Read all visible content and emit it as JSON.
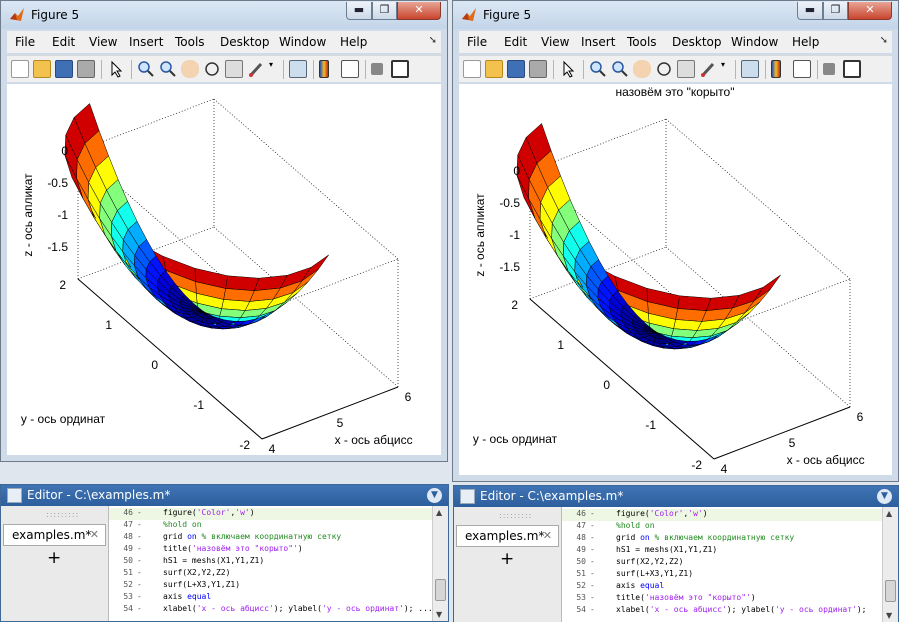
{
  "figures": [
    {
      "title": "Figure 5",
      "menu": [
        "File",
        "Edit",
        "View",
        "Insert",
        "Tools",
        "Desktop",
        "Window",
        "Help"
      ],
      "plot": {
        "title": "",
        "xlabel": "x - ось абцисс",
        "ylabel": "y - ось ординат",
        "zlabel": "z - ось апликат",
        "x_ticks": [
          "4",
          "5",
          "6"
        ],
        "y_ticks": [
          "-2",
          "-1",
          "0",
          "1",
          "2"
        ],
        "z_ticks": [
          "0",
          "-0.5",
          "-1",
          "-1.5"
        ]
      }
    },
    {
      "title": "Figure 5",
      "menu": [
        "File",
        "Edit",
        "View",
        "Insert",
        "Tools",
        "Desktop",
        "Window",
        "Help"
      ],
      "plot": {
        "title": "назовём это \"корыто\"",
        "xlabel": "x - ось абцисс",
        "ylabel": "y - ось ординат",
        "zlabel": "z - ось апликат",
        "x_ticks": [
          "4",
          "5",
          "6"
        ],
        "y_ticks": [
          "-2",
          "-1",
          "0",
          "1",
          "2"
        ],
        "z_ticks": [
          "0",
          "-0.5",
          "-1",
          "-1.5"
        ]
      }
    }
  ],
  "window_buttons": {
    "min": "▬",
    "max": "❐",
    "close": "✕"
  },
  "editors": [
    {
      "title": "Editor - C:\\examples.m*",
      "tab": "examples.m*",
      "tab_close": "✕",
      "new_tab": "+",
      "lines": [
        {
          "n": "46",
          "parts": [
            [
              "plain",
              "figure("
            ],
            [
              "str",
              "'Color'"
            ],
            [
              "plain",
              ","
            ],
            [
              "str",
              "'w'"
            ],
            [
              "plain",
              ")"
            ]
          ]
        },
        {
          "n": "47",
          "parts": [
            [
              "cmt",
              "%hold on"
            ]
          ]
        },
        {
          "n": "48",
          "parts": [
            [
              "plain",
              "grid "
            ],
            [
              "kw",
              "on"
            ],
            [
              "cmt",
              " % включаем координатную сетку"
            ]
          ]
        },
        {
          "n": "49",
          "parts": [
            [
              "plain",
              "title("
            ],
            [
              "str",
              "'назовём это \"корыто\"'"
            ],
            [
              "plain",
              ")"
            ]
          ]
        },
        {
          "n": "50",
          "parts": [
            [
              "plain",
              "hS1 = meshs(X1,Y1,Z1)"
            ]
          ]
        },
        {
          "n": "51",
          "parts": [
            [
              "plain",
              "surf(X2,Y2,Z2)"
            ]
          ]
        },
        {
          "n": "52",
          "parts": [
            [
              "plain",
              "surf(L+X3,Y1,Z1)"
            ]
          ]
        },
        {
          "n": "53",
          "parts": [
            [
              "plain",
              "axis "
            ],
            [
              "kw",
              "equal"
            ]
          ]
        },
        {
          "n": "54",
          "parts": [
            [
              "plain",
              "xlabel("
            ],
            [
              "str",
              "'x - ось абцисс'"
            ],
            [
              "plain",
              "); ylabel("
            ],
            [
              "str",
              "'y - ось ординат'"
            ],
            [
              "plain",
              "); ..."
            ]
          ]
        }
      ]
    },
    {
      "title": "Editor - C:\\examples.m*",
      "tab": "examples.m*",
      "tab_close": "✕",
      "new_tab": "+",
      "lines": [
        {
          "n": "46",
          "parts": [
            [
              "plain",
              "figure("
            ],
            [
              "str",
              "'Color'"
            ],
            [
              "plain",
              ","
            ],
            [
              "str",
              "'w'"
            ],
            [
              "plain",
              ")"
            ]
          ]
        },
        {
          "n": "47",
          "parts": [
            [
              "cmt",
              "%hold on"
            ]
          ]
        },
        {
          "n": "48",
          "parts": [
            [
              "plain",
              "grid "
            ],
            [
              "kw",
              "on"
            ],
            [
              "cmt",
              " % включаем координатную сетку"
            ]
          ]
        },
        {
          "n": "49",
          "parts": [
            [
              "plain",
              "hS1 = meshs(X1,Y1,Z1)"
            ]
          ]
        },
        {
          "n": "50",
          "parts": [
            [
              "plain",
              "surf(X2,Y2,Z2)"
            ]
          ]
        },
        {
          "n": "51",
          "parts": [
            [
              "plain",
              "surf(L+X3,Y1,Z1)"
            ]
          ]
        },
        {
          "n": "52",
          "parts": [
            [
              "plain",
              "axis "
            ],
            [
              "kw",
              "equal"
            ]
          ]
        },
        {
          "n": "53",
          "parts": [
            [
              "plain",
              "title("
            ],
            [
              "str",
              "'назовём это \"корыто\"'"
            ],
            [
              "plain",
              ")"
            ]
          ]
        },
        {
          "n": "54",
          "parts": [
            [
              "plain",
              "xlabel("
            ],
            [
              "str",
              "'x - ось абцисс'"
            ],
            [
              "plain",
              "); ylabel("
            ],
            [
              "str",
              "'y - ось ординат'"
            ],
            [
              "plain",
              ");"
            ]
          ]
        }
      ]
    }
  ],
  "colors": {
    "jet": [
      "#00007f",
      "#0000ff",
      "#007fff",
      "#00ffff",
      "#7fff7f",
      "#ffff00",
      "#ff7f00",
      "#ff0000",
      "#7f0000"
    ]
  }
}
